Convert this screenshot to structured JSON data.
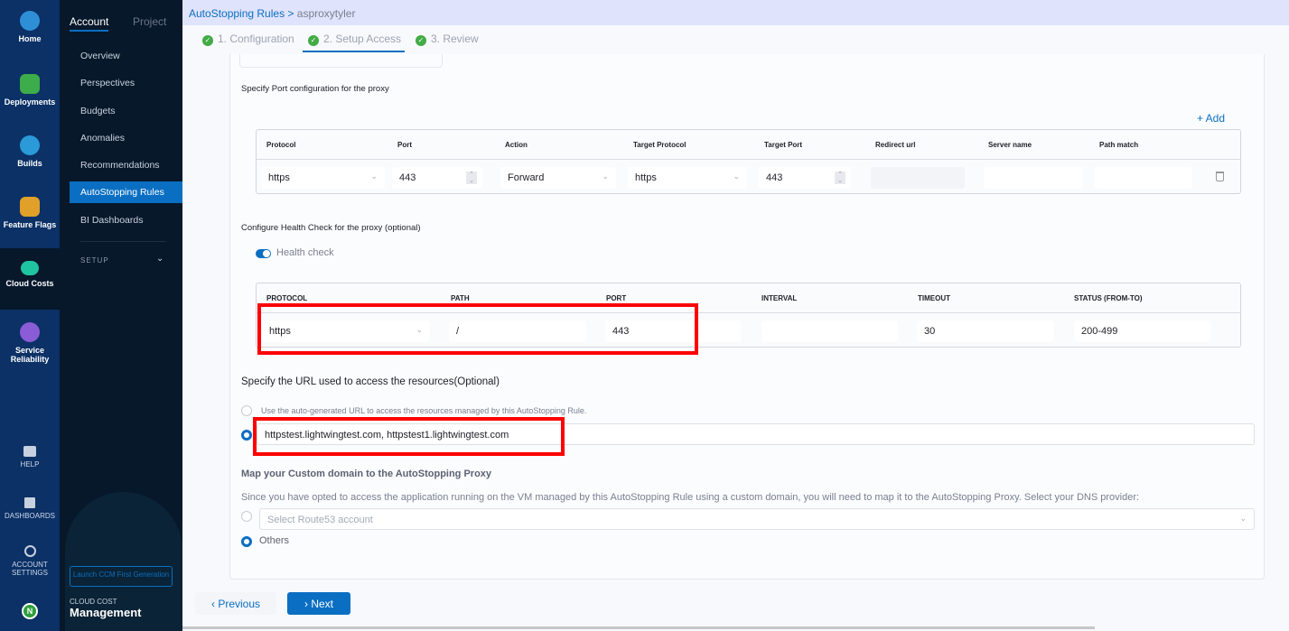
{
  "nav_primary": [
    {
      "label": "Home",
      "icon": "home-icon",
      "color": "#2e8fd6"
    },
    {
      "label": "Deployments",
      "icon": "deployments-icon",
      "color": "#3dac4a"
    },
    {
      "label": "Builds",
      "icon": "builds-icon",
      "color": "#2a9ad8"
    },
    {
      "label": "Feature Flags",
      "icon": "feature-flags-icon",
      "color": "#e0a02a"
    },
    {
      "label": "Cloud Costs",
      "icon": "cloud-costs-icon",
      "color": "#1fc4a0"
    },
    {
      "label": "Service Reliability",
      "icon": "service-reliability-icon",
      "color": "#8a5cd6"
    }
  ],
  "nav_bottom": [
    {
      "label": "HELP",
      "icon": "help-icon"
    },
    {
      "label": "DASHBOARDS",
      "icon": "dashboards-icon"
    },
    {
      "label": "ACCOUNT SETTINGS",
      "icon": "gear-icon"
    }
  ],
  "avatar": "N",
  "nav_secondary": {
    "tabs": [
      "Account",
      "Project"
    ],
    "items": [
      "Overview",
      "Perspectives",
      "Budgets",
      "Anomalies",
      "Recommendations",
      "AutoStopping Rules",
      "BI Dashboards"
    ],
    "setup": "SETUP",
    "launch_button": "Launch CCM First Generation",
    "module_caption": "CLOUD COST",
    "module_name": "Management"
  },
  "breadcrumb": {
    "parent": "AutoStopping Rules",
    "separator": ">",
    "current": "asproxytyler"
  },
  "steps": [
    "1. Configuration",
    "2. Setup Access",
    "3. Review"
  ],
  "port_config": {
    "title": "Specify Port configuration for the proxy",
    "add_label": "+ Add",
    "headers": [
      "Protocol",
      "Port",
      "Action",
      "Target Protocol",
      "Target Port",
      "Redirect url",
      "Server name",
      "Path match"
    ],
    "row": {
      "protocol": "https",
      "port": "443",
      "action": "Forward",
      "target_protocol": "https",
      "target_port": "443",
      "redirect_url": "",
      "server_name": "",
      "path_match": ""
    }
  },
  "health_check": {
    "title": "Configure Health Check for the proxy (optional)",
    "toggle_label": "Health check",
    "enabled": true,
    "headers": [
      "PROTOCOL",
      "PATH",
      "PORT",
      "INTERVAL",
      "TIMEOUT",
      "STATUS (FROM-TO)"
    ],
    "row": {
      "protocol": "https",
      "path": "/",
      "port": "443",
      "interval": "",
      "timeout": "30",
      "status": "200-499"
    }
  },
  "url_section": {
    "title": "Specify the URL used to access the resources(Optional)",
    "auto_option": "Use the auto-generated URL to access the resources managed by this AutoStopping Rule.",
    "custom_value": "httpstest.lightwingtest.com, httpstest1.lightwingtest.com"
  },
  "custom_domain": {
    "title": "Map your Custom domain to the AutoStopping Proxy",
    "description": "Since you have opted to access the application running on the VM managed by this AutoStopping Rule using a custom domain, you will need to map it to the AutoStopping Proxy. Select your DNS provider:",
    "route53_placeholder": "Select Route53 account",
    "others_label": "Others"
  },
  "footer": {
    "previous": "Previous",
    "next": "Next"
  }
}
